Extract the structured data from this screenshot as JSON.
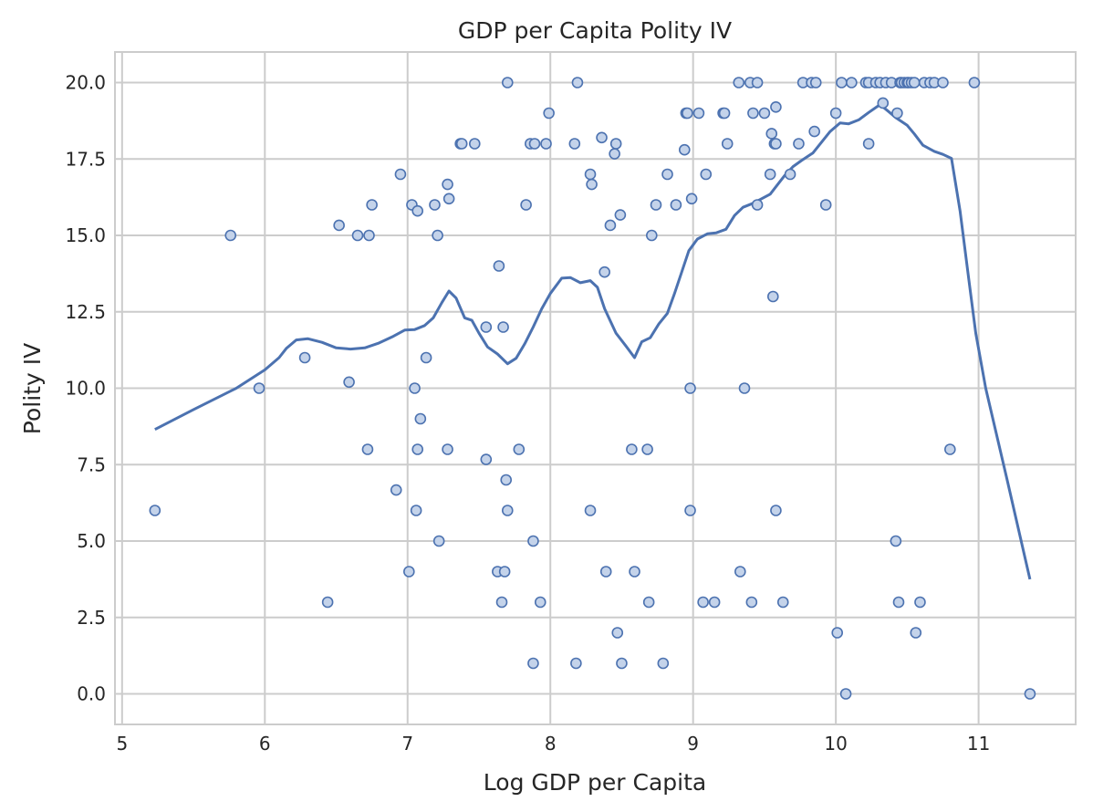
{
  "chart_data": {
    "type": "scatter",
    "title": "GDP per Capita Polity IV",
    "xlabel": "Log GDP per Capita",
    "ylabel": "Polity IV",
    "xlim": [
      4.95,
      11.68
    ],
    "ylim": [
      -1.0,
      21.0
    ],
    "grid": true,
    "x_ticks": [
      5,
      6,
      7,
      8,
      9,
      10,
      11
    ],
    "x_tick_labels": [
      "5",
      "6",
      "7",
      "8",
      "9",
      "10",
      "11"
    ],
    "y_ticks": [
      0.0,
      2.5,
      5.0,
      7.5,
      10.0,
      12.5,
      15.0,
      17.5,
      20.0
    ],
    "y_tick_labels": [
      "0.0",
      "2.5",
      "5.0",
      "7.5",
      "10.0",
      "12.5",
      "15.0",
      "17.5",
      "20.0"
    ],
    "colors": {
      "line": "#4c72b0",
      "marker_edge": "#4c72b0",
      "marker_fill": "#c4d3ea",
      "grid": "#cccccc",
      "frame": "#cccccc"
    },
    "series": [
      {
        "kind": "scatter",
        "points": [
          [
            5.23,
            6
          ],
          [
            5.76,
            15
          ],
          [
            5.96,
            10
          ],
          [
            6.28,
            11
          ],
          [
            6.44,
            3
          ],
          [
            6.52,
            15.33
          ],
          [
            6.59,
            10.2
          ],
          [
            6.65,
            15
          ],
          [
            6.72,
            8
          ],
          [
            6.73,
            15
          ],
          [
            6.75,
            16
          ],
          [
            6.92,
            6.67
          ],
          [
            6.95,
            17
          ],
          [
            7.01,
            4
          ],
          [
            7.03,
            16
          ],
          [
            7.05,
            10
          ],
          [
            7.06,
            6
          ],
          [
            7.07,
            15.8
          ],
          [
            7.07,
            8
          ],
          [
            7.09,
            9
          ],
          [
            7.13,
            11
          ],
          [
            7.19,
            16
          ],
          [
            7.21,
            15
          ],
          [
            7.22,
            5
          ],
          [
            7.28,
            16.67
          ],
          [
            7.28,
            8
          ],
          [
            7.29,
            16.2
          ],
          [
            7.37,
            18
          ],
          [
            7.38,
            18
          ],
          [
            7.47,
            18
          ],
          [
            7.55,
            7.67
          ],
          [
            7.55,
            12
          ],
          [
            7.63,
            4
          ],
          [
            7.64,
            14
          ],
          [
            7.66,
            3
          ],
          [
            7.67,
            12
          ],
          [
            7.68,
            4
          ],
          [
            7.69,
            7
          ],
          [
            7.7,
            6
          ],
          [
            7.7,
            20
          ],
          [
            7.78,
            8
          ],
          [
            7.83,
            16
          ],
          [
            7.86,
            18
          ],
          [
            7.88,
            5
          ],
          [
            7.88,
            1
          ],
          [
            7.89,
            18
          ],
          [
            7.93,
            3
          ],
          [
            7.97,
            18
          ],
          [
            7.99,
            19
          ],
          [
            8.17,
            18
          ],
          [
            8.18,
            1
          ],
          [
            8.19,
            20
          ],
          [
            8.28,
            17
          ],
          [
            8.28,
            6
          ],
          [
            8.29,
            16.67
          ],
          [
            8.36,
            18.2
          ],
          [
            8.38,
            13.8
          ],
          [
            8.39,
            4
          ],
          [
            8.42,
            15.33
          ],
          [
            8.45,
            17.67
          ],
          [
            8.46,
            18
          ],
          [
            8.47,
            2
          ],
          [
            8.49,
            15.67
          ],
          [
            8.5,
            1
          ],
          [
            8.57,
            8
          ],
          [
            8.59,
            4
          ],
          [
            8.68,
            8
          ],
          [
            8.69,
            3
          ],
          [
            8.71,
            15
          ],
          [
            8.74,
            16
          ],
          [
            8.79,
            1
          ],
          [
            8.82,
            17
          ],
          [
            8.88,
            16
          ],
          [
            8.94,
            17.8
          ],
          [
            8.95,
            19
          ],
          [
            8.96,
            19
          ],
          [
            8.98,
            10
          ],
          [
            8.98,
            6
          ],
          [
            8.99,
            16.2
          ],
          [
            9.04,
            19
          ],
          [
            9.07,
            3
          ],
          [
            9.09,
            17
          ],
          [
            9.15,
            3
          ],
          [
            9.21,
            19
          ],
          [
            9.22,
            19
          ],
          [
            9.24,
            18
          ],
          [
            9.32,
            20
          ],
          [
            9.33,
            4
          ],
          [
            9.36,
            10
          ],
          [
            9.4,
            20
          ],
          [
            9.41,
            3
          ],
          [
            9.42,
            19
          ],
          [
            9.45,
            16
          ],
          [
            9.45,
            20
          ],
          [
            9.5,
            19
          ],
          [
            9.54,
            17
          ],
          [
            9.55,
            18.33
          ],
          [
            9.56,
            13
          ],
          [
            9.57,
            18
          ],
          [
            9.58,
            18
          ],
          [
            9.58,
            19.2
          ],
          [
            9.58,
            6
          ],
          [
            9.63,
            3
          ],
          [
            9.68,
            17
          ],
          [
            9.74,
            18
          ],
          [
            9.77,
            20
          ],
          [
            9.83,
            20
          ],
          [
            9.85,
            18.4
          ],
          [
            9.86,
            20
          ],
          [
            9.93,
            16
          ],
          [
            10.0,
            19
          ],
          [
            10.01,
            2
          ],
          [
            10.04,
            20
          ],
          [
            10.07,
            0
          ],
          [
            10.11,
            20
          ],
          [
            10.21,
            20
          ],
          [
            10.23,
            20
          ],
          [
            10.23,
            18
          ],
          [
            10.28,
            20
          ],
          [
            10.31,
            20
          ],
          [
            10.33,
            19.33
          ],
          [
            10.35,
            20
          ],
          [
            10.39,
            20
          ],
          [
            10.42,
            5
          ],
          [
            10.43,
            19
          ],
          [
            10.44,
            3
          ],
          [
            10.45,
            20
          ],
          [
            10.46,
            20
          ],
          [
            10.48,
            20
          ],
          [
            10.5,
            20
          ],
          [
            10.51,
            20
          ],
          [
            10.53,
            20
          ],
          [
            10.55,
            20
          ],
          [
            10.56,
            2
          ],
          [
            10.59,
            3
          ],
          [
            10.62,
            20
          ],
          [
            10.66,
            20
          ],
          [
            10.69,
            20
          ],
          [
            10.75,
            20
          ],
          [
            10.8,
            8
          ],
          [
            10.97,
            20
          ],
          [
            11.36,
            0
          ]
        ]
      },
      {
        "kind": "line",
        "points": [
          [
            5.23,
            8.65
          ],
          [
            5.5,
            9.3
          ],
          [
            5.8,
            10.0
          ],
          [
            6.0,
            10.6
          ],
          [
            6.1,
            11.0
          ],
          [
            6.15,
            11.3
          ],
          [
            6.22,
            11.58
          ],
          [
            6.3,
            11.62
          ],
          [
            6.4,
            11.5
          ],
          [
            6.5,
            11.32
          ],
          [
            6.6,
            11.28
          ],
          [
            6.7,
            11.32
          ],
          [
            6.8,
            11.48
          ],
          [
            6.9,
            11.7
          ],
          [
            6.98,
            11.9
          ],
          [
            7.05,
            11.92
          ],
          [
            7.12,
            12.05
          ],
          [
            7.18,
            12.3
          ],
          [
            7.24,
            12.8
          ],
          [
            7.29,
            13.18
          ],
          [
            7.34,
            12.95
          ],
          [
            7.4,
            12.3
          ],
          [
            7.45,
            12.22
          ],
          [
            7.5,
            11.8
          ],
          [
            7.56,
            11.35
          ],
          [
            7.63,
            11.12
          ],
          [
            7.7,
            10.8
          ],
          [
            7.76,
            10.98
          ],
          [
            7.82,
            11.45
          ],
          [
            7.88,
            12.0
          ],
          [
            7.94,
            12.6
          ],
          [
            8.0,
            13.1
          ],
          [
            8.08,
            13.6
          ],
          [
            8.14,
            13.62
          ],
          [
            8.21,
            13.45
          ],
          [
            8.28,
            13.52
          ],
          [
            8.33,
            13.3
          ],
          [
            8.38,
            12.6
          ],
          [
            8.46,
            11.8
          ],
          [
            8.53,
            11.38
          ],
          [
            8.59,
            11.0
          ],
          [
            8.64,
            11.52
          ],
          [
            8.7,
            11.65
          ],
          [
            8.76,
            12.1
          ],
          [
            8.82,
            12.45
          ],
          [
            8.87,
            13.1
          ],
          [
            8.92,
            13.8
          ],
          [
            8.97,
            14.5
          ],
          [
            9.03,
            14.88
          ],
          [
            9.1,
            15.05
          ],
          [
            9.16,
            15.08
          ],
          [
            9.23,
            15.2
          ],
          [
            9.29,
            15.65
          ],
          [
            9.35,
            15.92
          ],
          [
            9.42,
            16.05
          ],
          [
            9.48,
            16.2
          ],
          [
            9.54,
            16.35
          ],
          [
            9.59,
            16.65
          ],
          [
            9.64,
            16.95
          ],
          [
            9.7,
            17.25
          ],
          [
            9.76,
            17.45
          ],
          [
            9.84,
            17.7
          ],
          [
            9.9,
            18.05
          ],
          [
            9.96,
            18.4
          ],
          [
            10.03,
            18.68
          ],
          [
            10.09,
            18.65
          ],
          [
            10.16,
            18.78
          ],
          [
            10.23,
            19.02
          ],
          [
            10.31,
            19.28
          ],
          [
            10.37,
            19.05
          ],
          [
            10.42,
            18.85
          ],
          [
            10.5,
            18.6
          ],
          [
            10.55,
            18.32
          ],
          [
            10.61,
            17.95
          ],
          [
            10.69,
            17.75
          ],
          [
            10.75,
            17.65
          ],
          [
            10.81,
            17.52
          ],
          [
            10.87,
            15.8
          ],
          [
            10.93,
            13.6
          ],
          [
            10.98,
            11.8
          ],
          [
            11.05,
            10.0
          ],
          [
            11.2,
            7.0
          ],
          [
            11.36,
            3.75
          ]
        ]
      }
    ]
  }
}
